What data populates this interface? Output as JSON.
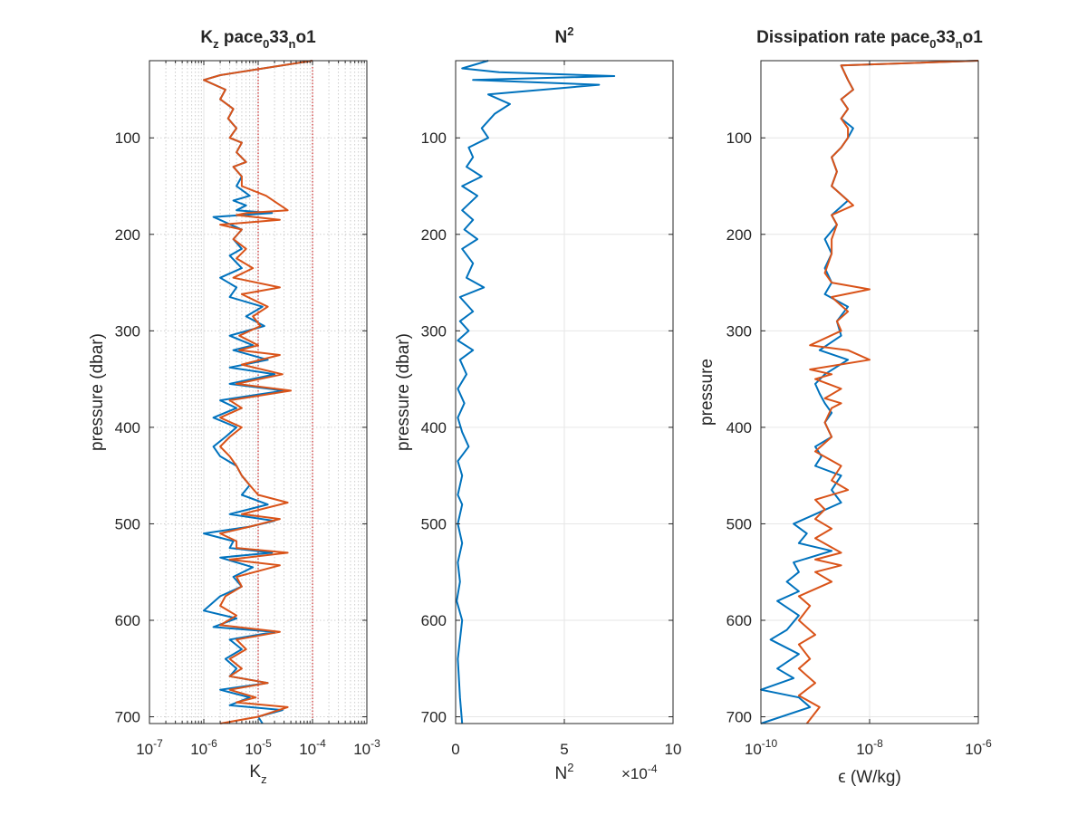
{
  "colors": {
    "blue": "#0072BD",
    "orange": "#D95319",
    "red_ref": "#C00000",
    "axis": "#262626"
  },
  "chart_data": [
    {
      "type": "line",
      "title": {
        "main": "K",
        "sub1": "z",
        "mid": " pace",
        "sub2": "0",
        "mid2": "33",
        "sub3": "n",
        "end": "o1"
      },
      "xlabel": {
        "main": "K",
        "sub": "z"
      },
      "ylabel": "pressure (dbar)",
      "xscale": "log",
      "xlim": [
        1e-07,
        0.001
      ],
      "ylim": [
        20,
        707
      ],
      "y_reversed": true,
      "grid": "on (log minor)",
      "xticklabels": [
        {
          "b": "10",
          "e": "-7"
        },
        {
          "b": "10",
          "e": "-6"
        },
        {
          "b": "10",
          "e": "-5"
        },
        {
          "b": "10",
          "e": "-4"
        },
        {
          "b": "10",
          "e": "-3"
        }
      ],
      "xtick_values": [
        1e-07,
        1e-06,
        1e-05,
        0.0001,
        0.001
      ],
      "yticks": [
        "100",
        "200",
        "300",
        "400",
        "500",
        "600",
        "700"
      ],
      "reference_lines_x": [
        1e-05,
        0.0001
      ],
      "series": [
        {
          "color": "blue",
          "x": [
            0.0001,
            2e-06,
            1e-06,
            2.5e-06,
            2e-06,
            3.5e-06,
            2.8e-06,
            4e-06,
            3e-06,
            5e-06,
            4e-06,
            6e-06,
            3.5e-06,
            5e-06,
            4e-06,
            7e-06,
            3.5e-06,
            6e-06,
            4e-06,
            1.8e-05,
            1.5e-06,
            5e-06,
            3.5e-06,
            5e-06,
            3e-06,
            5e-06,
            2e-06,
            4e-06,
            3e-06,
            1.2e-05,
            6e-06,
            1.3e-05,
            3e-06,
            8e-06,
            3.5e-06,
            1.5e-05,
            3e-06,
            2e-05,
            3e-06,
            3e-05,
            2e-06,
            4e-06,
            1.5e-06,
            4e-06,
            2.5e-06,
            1.5e-06,
            2e-06,
            4e-06,
            5e-06,
            7e-06,
            5e-06,
            1.5e-05,
            3e-06,
            2e-05,
            7e-06,
            1e-06,
            3.5e-06,
            3e-06,
            1.8e-05,
            2e-06,
            8e-06,
            3.5e-06,
            5e-06,
            2e-06,
            1e-06,
            4e-06,
            1.5e-06,
            2e-05,
            3e-06,
            5e-06,
            2.5e-06,
            4e-06,
            3e-06,
            1.5e-05,
            2e-06,
            7e-06,
            3e-06,
            2.8e-05,
            1e-05,
            1.2e-05
          ],
          "y": [
            20,
            35,
            40,
            50,
            60,
            70,
            80,
            90,
            100,
            105,
            115,
            125,
            130,
            140,
            150,
            160,
            165,
            170,
            175,
            178,
            182,
            195,
            205,
            215,
            222,
            235,
            245,
            255,
            265,
            275,
            285,
            295,
            305,
            315,
            320,
            330,
            338,
            345,
            355,
            362,
            372,
            380,
            390,
            400,
            410,
            420,
            430,
            440,
            450,
            460,
            470,
            480,
            490,
            497,
            503,
            510,
            518,
            525,
            530,
            535,
            545,
            555,
            565,
            575,
            590,
            598,
            607,
            612,
            620,
            630,
            640,
            650,
            658,
            665,
            672,
            680,
            688,
            693,
            700,
            707
          ]
        },
        {
          "color": "orange",
          "x": [
            0.0001,
            2e-06,
            1e-06,
            2.5e-06,
            2e-06,
            3.5e-06,
            2.8e-06,
            4e-06,
            3e-06,
            5e-06,
            4e-06,
            6e-06,
            3.5e-06,
            5e-06,
            5e-06,
            1.4e-05,
            3.5e-05,
            6e-06,
            4e-06,
            2.5e-05,
            2e-06,
            5e-06,
            3.5e-06,
            6e-06,
            4e-06,
            8e-06,
            3.5e-06,
            2.5e-05,
            5e-06,
            1.5e-05,
            8e-06,
            1.1e-05,
            4.5e-06,
            1e-05,
            4.5e-06,
            2.5e-05,
            5e-06,
            2.8e-05,
            4e-06,
            4e-05,
            3e-06,
            5e-06,
            2e-06,
            5e-06,
            3e-06,
            2e-06,
            3e-06,
            4e-06,
            5e-06,
            7e-06,
            1e-05,
            3.5e-05,
            5e-06,
            2.5e-05,
            7e-06,
            2e-06,
            4e-06,
            4e-06,
            3.5e-05,
            3e-06,
            2.5e-05,
            4e-06,
            5e-06,
            2.5e-06,
            2e-06,
            4e-06,
            2e-06,
            2.5e-05,
            4e-06,
            6e-06,
            3e-06,
            5e-06,
            3e-06,
            1.5e-05,
            3e-06,
            9e-06,
            4e-06,
            3.5e-05,
            1e-05,
            2e-06
          ],
          "y": [
            20,
            35,
            40,
            50,
            60,
            70,
            80,
            90,
            100,
            105,
            115,
            125,
            130,
            140,
            150,
            160,
            175,
            178,
            180,
            185,
            190,
            195,
            205,
            215,
            225,
            235,
            245,
            255,
            262,
            275,
            285,
            295,
            305,
            315,
            320,
            325,
            335,
            345,
            355,
            362,
            372,
            380,
            390,
            400,
            410,
            420,
            430,
            440,
            450,
            460,
            470,
            478,
            490,
            495,
            503,
            510,
            518,
            525,
            530,
            537,
            543,
            555,
            565,
            575,
            585,
            595,
            605,
            612,
            620,
            630,
            640,
            650,
            658,
            665,
            672,
            680,
            685,
            690,
            700,
            707
          ]
        }
      ]
    },
    {
      "type": "line",
      "title": {
        "main": "N",
        "sup": "2"
      },
      "xlabel": {
        "main": "N",
        "sup": "2"
      },
      "ylabel": "pressure (dbar)",
      "xscale": "linear",
      "xlim": [
        0,
        10
      ],
      "ylim": [
        20,
        707
      ],
      "y_reversed": true,
      "grid": "on",
      "xticklabels": [
        "0",
        "5",
        "10"
      ],
      "xtick_values": [
        0,
        5,
        10
      ],
      "exponent_label": {
        "times": "×10",
        "exp": "-4"
      },
      "yticks": [
        "100",
        "200",
        "300",
        "400",
        "500",
        "600",
        "700"
      ],
      "series": [
        {
          "color": "blue",
          "x": [
            1.5,
            0.3,
            2,
            7.3,
            0.8,
            6.6,
            1.5,
            2.5,
            1.8,
            1.2,
            1.5,
            0.6,
            0.8,
            0.5,
            1.2,
            0.3,
            1.0,
            0.3,
            0.8,
            0.4,
            1.0,
            0.3,
            0.8,
            0.5,
            1.3,
            0.2,
            0.8,
            0.2,
            0.6,
            0.1,
            0.8,
            0.2,
            0.5,
            0.1,
            0.4,
            0.1,
            0.3,
            0.6,
            0.1,
            0.3,
            0.1,
            0.3,
            0.1,
            0.3,
            0.1,
            0.2,
            0.05,
            0.3,
            0.1,
            0.2,
            0.3
          ],
          "y": [
            20,
            28,
            32,
            36,
            40,
            45,
            55,
            65,
            75,
            90,
            100,
            110,
            120,
            130,
            140,
            150,
            160,
            175,
            185,
            195,
            205,
            215,
            230,
            245,
            255,
            265,
            280,
            290,
            300,
            310,
            320,
            330,
            345,
            360,
            375,
            390,
            405,
            420,
            435,
            450,
            470,
            480,
            500,
            520,
            540,
            560,
            580,
            600,
            640,
            680,
            707
          ]
        }
      ]
    },
    {
      "type": "line",
      "title": {
        "main": "Dissipation rate pace",
        "sub1": "0",
        "mid": "33",
        "sub2": "n",
        "end": "o1"
      },
      "xlabel": "ϵ (W/kg)",
      "ylabel": "pressure",
      "xscale": "log",
      "xlim": [
        1e-10,
        1e-06
      ],
      "ylim": [
        20,
        707
      ],
      "y_reversed": true,
      "grid": "on",
      "xticklabels": [
        {
          "b": "10",
          "e": "-10"
        },
        {
          "b": "10",
          "e": "-8"
        },
        {
          "b": "10",
          "e": "-6"
        }
      ],
      "xtick_values": [
        1e-10,
        1e-08,
        1e-06
      ],
      "yticks": [
        "100",
        "200",
        "300",
        "400",
        "500",
        "600",
        "700"
      ],
      "series": [
        {
          "color": "blue",
          "x": [
            1e-06,
            3e-09,
            4e-09,
            5e-09,
            3e-09,
            4e-09,
            3e-09,
            5e-09,
            4e-09,
            3e-09,
            2e-09,
            2.5e-09,
            2e-09,
            4e-09,
            2e-09,
            2.5e-09,
            1.5e-09,
            2e-09,
            1.5e-09,
            2e-09,
            1.5e-09,
            4e-09,
            2.5e-09,
            3e-09,
            1.2e-09,
            4e-09,
            1.5e-09,
            1e-09,
            1.2e-09,
            1.5e-09,
            2e-09,
            1.5e-09,
            2e-09,
            1e-09,
            1.3e-09,
            1e-09,
            3e-09,
            2e-09,
            3e-09,
            1e-09,
            4e-10,
            7e-10,
            5e-10,
            2e-09,
            4e-10,
            5e-10,
            3e-10,
            5e-10,
            2e-10,
            5e-10,
            3e-10,
            1.5e-10,
            5e-10,
            2e-10,
            4e-10,
            1e-10,
            5e-10,
            8e-10,
            1e-10
          ],
          "y": [
            20,
            25,
            40,
            50,
            60,
            70,
            80,
            90,
            100,
            110,
            120,
            135,
            150,
            165,
            180,
            190,
            205,
            220,
            235,
            250,
            262,
            275,
            290,
            305,
            320,
            330,
            345,
            355,
            365,
            375,
            385,
            395,
            410,
            420,
            430,
            440,
            450,
            465,
            478,
            490,
            500,
            510,
            520,
            528,
            540,
            550,
            560,
            570,
            580,
            595,
            610,
            620,
            635,
            650,
            660,
            672,
            680,
            690,
            707
          ]
        },
        {
          "color": "orange",
          "x": [
            1e-06,
            3e-09,
            4e-09,
            5e-09,
            3e-09,
            4e-09,
            3e-09,
            4e-09,
            4e-09,
            3e-09,
            2e-09,
            2.5e-09,
            2e-09,
            5e-09,
            2e-09,
            2.5e-09,
            2e-09,
            2e-09,
            1.5e-09,
            2e-09,
            1e-08,
            2e-09,
            4e-09,
            2.5e-09,
            3e-09,
            8e-10,
            4e-09,
            1e-08,
            8e-10,
            2e-09,
            1e-09,
            3e-09,
            1.5e-09,
            3e-09,
            2e-09,
            1.5e-09,
            2e-09,
            1e-09,
            3e-09,
            2e-09,
            4e-09,
            1e-09,
            1.5e-09,
            1e-09,
            2e-09,
            1e-09,
            3e-09,
            1e-09,
            3e-09,
            1e-09,
            2e-09,
            5e-10,
            8e-10,
            5e-10,
            1e-09,
            5e-10,
            8e-10,
            5e-10,
            1e-09,
            5e-10,
            1.2e-09,
            7e-10
          ],
          "y": [
            20,
            25,
            40,
            50,
            60,
            70,
            80,
            90,
            100,
            110,
            120,
            135,
            150,
            170,
            180,
            190,
            205,
            220,
            240,
            250,
            257,
            265,
            280,
            290,
            300,
            315,
            320,
            330,
            340,
            345,
            350,
            360,
            370,
            375,
            380,
            395,
            410,
            425,
            440,
            455,
            465,
            475,
            485,
            495,
            505,
            515,
            530,
            537,
            543,
            550,
            560,
            575,
            585,
            600,
            615,
            625,
            640,
            650,
            665,
            678,
            690,
            707
          ]
        }
      ]
    }
  ]
}
